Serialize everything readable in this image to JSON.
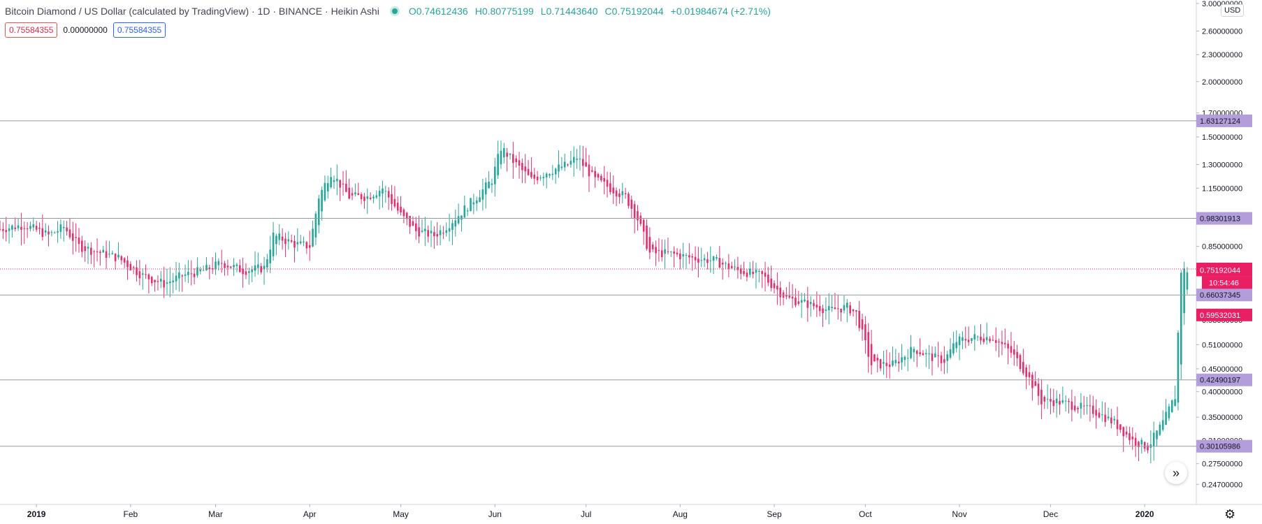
{
  "legend": {
    "title": "Bitcoin Diamond / US Dollar (calculated by TradingView) · 1D · BINANCE · Heikin Ashi",
    "open": "0.74612436",
    "high": "0.80775199",
    "low": "0.71443640",
    "close": "0.75192044",
    "change": "+0.01984674 (+2.71%)"
  },
  "inputs": {
    "value_red": "0.75584355",
    "value_plain": "0.00000000",
    "value_blue": "0.75584355"
  },
  "currency": "USD",
  "nav_icon": "double-chevron-right-icon",
  "settings_icon": "gear-icon",
  "colors": {
    "up": "#26a69a",
    "down": "#e0306f",
    "hline_label": "#b39ddb",
    "price_label": "#e91e63"
  },
  "chart_data": {
    "type": "candlestick",
    "style": "Heikin Ashi",
    "interval": "1D",
    "exchange": "BINANCE",
    "y_scale": "log",
    "ylim": [
      0.235,
      3.0
    ],
    "xlim": [
      "2018-12-20",
      "2020-01-18"
    ],
    "y_ticks": [
      "0.24700000",
      "0.27500000",
      "0.31000000",
      "0.35000000",
      "0.40000000",
      "0.45000000",
      "0.51000000",
      "0.58000000",
      "0.66000000",
      "0.75000000",
      "0.85000000",
      "0.98000000",
      "1.15000000",
      "1.30000000",
      "1.50000000",
      "1.70000000",
      "2.00000000",
      "2.30000000",
      "2.60000000",
      "3.00000000"
    ],
    "x_ticks": [
      {
        "label": "2019",
        "date": "2019-01-01"
      },
      {
        "label": "Feb",
        "date": "2019-02-01"
      },
      {
        "label": "Mar",
        "date": "2019-03-01"
      },
      {
        "label": "Apr",
        "date": "2019-04-01"
      },
      {
        "label": "May",
        "date": "2019-05-01"
      },
      {
        "label": "Jun",
        "date": "2019-06-01"
      },
      {
        "label": "Jul",
        "date": "2019-07-01"
      },
      {
        "label": "Aug",
        "date": "2019-08-01"
      },
      {
        "label": "Sep",
        "date": "2019-09-01"
      },
      {
        "label": "Oct",
        "date": "2019-10-01"
      },
      {
        "label": "Nov",
        "date": "2019-11-01"
      },
      {
        "label": "Dec",
        "date": "2019-12-01"
      },
      {
        "label": "2020",
        "date": "2020-01-01"
      }
    ],
    "horizontal_lines": [
      "1.63127124",
      "0.98301913",
      "0.66037345",
      "0.42490197",
      "0.30105986"
    ],
    "price_line": "0.75584355",
    "price_labels": [
      {
        "text": "0.75584355",
        "value": 0.75584355
      },
      {
        "text": "0.75192044",
        "value": 0.75192044
      },
      {
        "text": "10:54:46",
        "value": 0.7045
      },
      {
        "text": "0.59532031",
        "value": 0.59532031
      }
    ],
    "candles": [
      {
        "date": "2018-12-20",
        "close": 0.93
      },
      {
        "date": "2018-12-28",
        "close": 0.95
      },
      {
        "date": "2019-01-05",
        "close": 0.9
      },
      {
        "date": "2019-01-10",
        "close": 0.94
      },
      {
        "date": "2019-01-15",
        "close": 0.85
      },
      {
        "date": "2019-01-20",
        "close": 0.83
      },
      {
        "date": "2019-01-28",
        "close": 0.8
      },
      {
        "date": "2019-02-05",
        "close": 0.73
      },
      {
        "date": "2019-02-12",
        "close": 0.7
      },
      {
        "date": "2019-02-18",
        "close": 0.73
      },
      {
        "date": "2019-02-25",
        "close": 0.75
      },
      {
        "date": "2019-03-03",
        "close": 0.78
      },
      {
        "date": "2019-03-10",
        "close": 0.75
      },
      {
        "date": "2019-03-17",
        "close": 0.76
      },
      {
        "date": "2019-03-20",
        "close": 0.9
      },
      {
        "date": "2019-03-27",
        "close": 0.86
      },
      {
        "date": "2019-04-01",
        "close": 0.85
      },
      {
        "date": "2019-04-04",
        "close": 1.1
      },
      {
        "date": "2019-04-08",
        "close": 1.25
      },
      {
        "date": "2019-04-14",
        "close": 1.1
      },
      {
        "date": "2019-04-20",
        "close": 1.1
      },
      {
        "date": "2019-04-25",
        "close": 1.15
      },
      {
        "date": "2019-05-01",
        "close": 1.0
      },
      {
        "date": "2019-05-06",
        "close": 0.92
      },
      {
        "date": "2019-05-12",
        "close": 0.9
      },
      {
        "date": "2019-05-15",
        "close": 0.93
      },
      {
        "date": "2019-05-20",
        "close": 1.0
      },
      {
        "date": "2019-05-26",
        "close": 1.1
      },
      {
        "date": "2019-05-31",
        "close": 1.2
      },
      {
        "date": "2019-06-03",
        "close": 1.42
      },
      {
        "date": "2019-06-08",
        "close": 1.3
      },
      {
        "date": "2019-06-13",
        "close": 1.2
      },
      {
        "date": "2019-06-18",
        "close": 1.25
      },
      {
        "date": "2019-06-25",
        "close": 1.3
      },
      {
        "date": "2019-06-28",
        "close": 1.35
      },
      {
        "date": "2019-07-04",
        "close": 1.2
      },
      {
        "date": "2019-07-09",
        "close": 1.15
      },
      {
        "date": "2019-07-14",
        "close": 1.1
      },
      {
        "date": "2019-07-18",
        "close": 0.98
      },
      {
        "date": "2019-07-22",
        "close": 0.82
      },
      {
        "date": "2019-07-28",
        "close": 0.82
      },
      {
        "date": "2019-08-05",
        "close": 0.8
      },
      {
        "date": "2019-08-12",
        "close": 0.79
      },
      {
        "date": "2019-08-20",
        "close": 0.75
      },
      {
        "date": "2019-08-28",
        "close": 0.73
      },
      {
        "date": "2019-09-05",
        "close": 0.65
      },
      {
        "date": "2019-09-12",
        "close": 0.63
      },
      {
        "date": "2019-09-19",
        "close": 0.61
      },
      {
        "date": "2019-09-25",
        "close": 0.62
      },
      {
        "date": "2019-09-28",
        "close": 0.6
      },
      {
        "date": "2019-10-03",
        "close": 0.46
      },
      {
        "date": "2019-10-10",
        "close": 0.46
      },
      {
        "date": "2019-10-17",
        "close": 0.5
      },
      {
        "date": "2019-10-22",
        "close": 0.48
      },
      {
        "date": "2019-10-27",
        "close": 0.47
      },
      {
        "date": "2019-10-31",
        "close": 0.52
      },
      {
        "date": "2019-11-06",
        "close": 0.53
      },
      {
        "date": "2019-11-12",
        "close": 0.53
      },
      {
        "date": "2019-11-18",
        "close": 0.49
      },
      {
        "date": "2019-11-23",
        "close": 0.44
      },
      {
        "date": "2019-11-28",
        "close": 0.38
      },
      {
        "date": "2019-12-03",
        "close": 0.38
      },
      {
        "date": "2019-12-10",
        "close": 0.37
      },
      {
        "date": "2019-12-16",
        "close": 0.36
      },
      {
        "date": "2019-12-22",
        "close": 0.34
      },
      {
        "date": "2019-12-28",
        "close": 0.31
      },
      {
        "date": "2020-01-02",
        "close": 0.3
      },
      {
        "date": "2020-01-07",
        "close": 0.34
      },
      {
        "date": "2020-01-11",
        "close": 0.39
      },
      {
        "date": "2020-01-13",
        "close": 0.75
      },
      {
        "date": "2020-01-15",
        "close": 0.75
      }
    ]
  }
}
